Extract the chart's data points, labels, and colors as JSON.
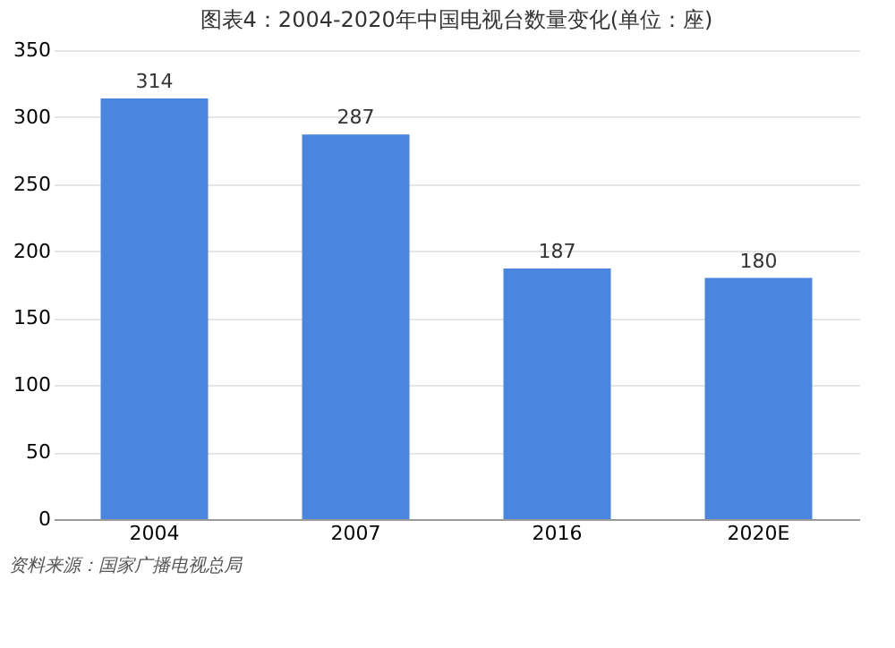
{
  "chart_data": {
    "type": "bar",
    "title": "图表4：2004-2020年中国电视台数量变化(单位：座)",
    "categories": [
      "2004",
      "2007",
      "2016",
      "2020E"
    ],
    "values": [
      314,
      287,
      187,
      180
    ],
    "color": "#4a86e0",
    "ylim": [
      0,
      350
    ],
    "yticks": [
      0,
      50,
      100,
      150,
      200,
      250,
      300,
      350
    ],
    "grid": "y",
    "data_labels": true,
    "annotations": [
      "资料来源：国家广播电视总局"
    ]
  }
}
